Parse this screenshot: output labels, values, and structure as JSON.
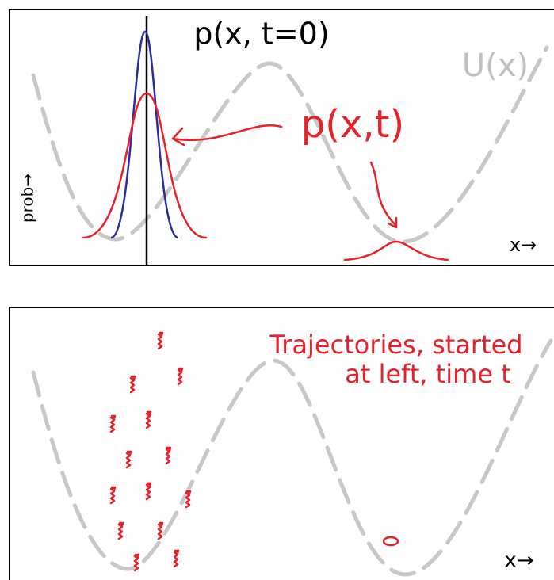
{
  "top_panel": {
    "title": "p(x, t=0)",
    "potential_label": "U(x)",
    "distribution_label": "p(x,t)",
    "y_axis_label": "prob→",
    "x_axis_label": "x→"
  },
  "bottom_panel": {
    "annotation_line1": "Trajectories, started",
    "annotation_line2": "at left, time t",
    "x_axis_label": "x→"
  }
}
